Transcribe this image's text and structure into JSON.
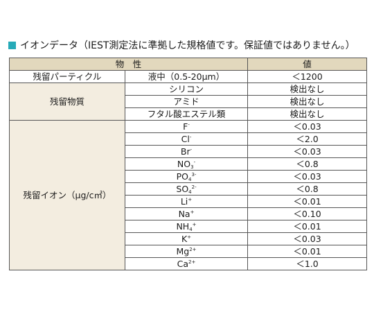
{
  "heading": "イオンデータ（IEST測定法に準拠した規格値です。保証値ではありません。）",
  "table": {
    "headers": [
      "物　性",
      "値"
    ],
    "particle": {
      "label": "残留パーティクル",
      "condition": "液中（0.5-20μm）",
      "value": "＜1200"
    },
    "substances": {
      "label": "残留物質",
      "items": [
        {
          "name": "シリコン",
          "value": "検出なし"
        },
        {
          "name": "アミド",
          "value": "検出なし"
        },
        {
          "name": "フタル酸エステル類",
          "value": "検出なし"
        }
      ]
    },
    "ions": {
      "label": "残留イオン（μg/c㎡）",
      "items": [
        {
          "base": "F",
          "sub": "",
          "sup": "-",
          "value": "＜0.03"
        },
        {
          "base": "Cl",
          "sub": "",
          "sup": "-",
          "value": "＜2.0"
        },
        {
          "base": "Br",
          "sub": "",
          "sup": "-",
          "value": "＜0.03"
        },
        {
          "base": "NO",
          "sub": "3",
          "sup": "-",
          "value": "＜0.8"
        },
        {
          "base": "PO",
          "sub": "4",
          "sup": "3-",
          "value": "＜0.03"
        },
        {
          "base": "SO",
          "sub": "4",
          "sup": "2-",
          "value": "＜0.8"
        },
        {
          "base": "Li",
          "sub": "",
          "sup": "+",
          "value": "＜0.01"
        },
        {
          "base": "Na",
          "sub": "",
          "sup": "+",
          "value": "＜0.10"
        },
        {
          "base": "NH",
          "sub": "4",
          "sup": "+",
          "value": "＜0.01"
        },
        {
          "base": "K",
          "sub": "",
          "sup": "+",
          "value": "＜0.03"
        },
        {
          "base": "Mg",
          "sub": "",
          "sup": "2+",
          "value": "＜0.01"
        },
        {
          "base": "Ca",
          "sub": "",
          "sup": "2+",
          "value": "＜1.0"
        }
      ]
    }
  }
}
